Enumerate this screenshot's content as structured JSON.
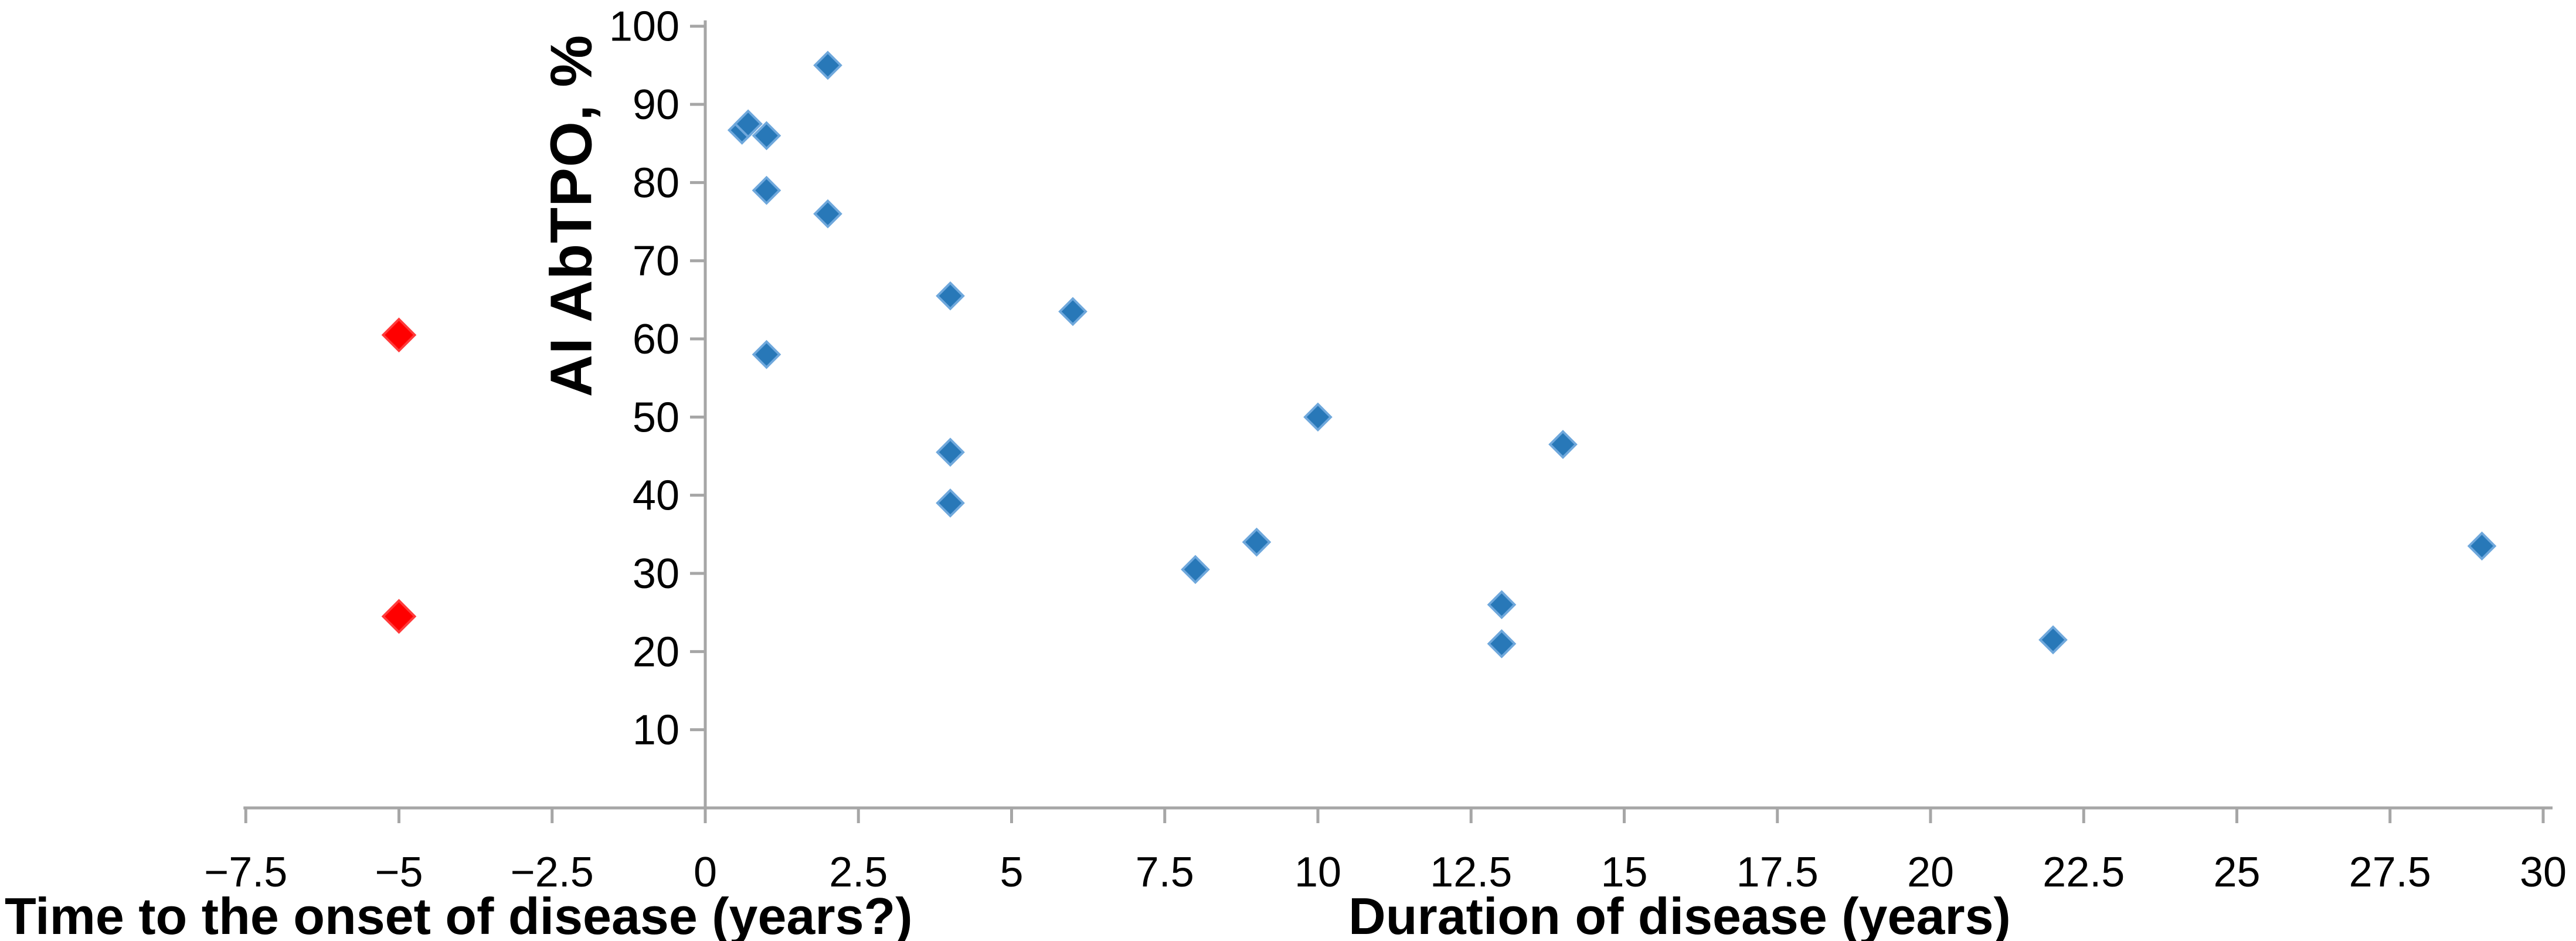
{
  "page": {
    "background": "#FFFFFF"
  },
  "chart_data": {
    "type": "scatter",
    "title": "",
    "ylabel": "AI AbTPO, %",
    "xlabel_left": "Time to the onset of disease (years?)",
    "xlabel_right": "Duration of disease (years)",
    "xlim": [
      -7.5,
      30
    ],
    "ylim": [
      0,
      100
    ],
    "x_ticks": [
      -7.5,
      -5,
      -2.5,
      0,
      2.5,
      5,
      7.5,
      10,
      12.5,
      15,
      17.5,
      20,
      22.5,
      25,
      27.5,
      30
    ],
    "y_ticks": [
      10,
      20,
      30,
      40,
      50,
      60,
      70,
      80,
      90,
      100
    ],
    "grid": false,
    "legend": "none",
    "axis_color": "#A6A6A6",
    "tick_label_color": "#000000",
    "tick_label_size": 72,
    "series": [
      {
        "id": "blue-diamonds",
        "marker": "diamond",
        "color": "#2878B8",
        "edge_color": "#6FA8DC",
        "marker_half_size": 22,
        "points": [
          [
            0.6,
            86.7
          ],
          [
            0.7,
            87.5
          ],
          [
            1,
            86
          ],
          [
            2,
            95
          ],
          [
            1,
            79
          ],
          [
            2,
            76
          ],
          [
            1,
            58
          ],
          [
            4,
            65.5
          ],
          [
            6,
            63.5
          ],
          [
            4,
            45.5
          ],
          [
            4,
            39
          ],
          [
            8,
            30.5
          ],
          [
            9,
            34
          ],
          [
            10,
            50
          ],
          [
            13,
            26
          ],
          [
            13,
            21
          ],
          [
            14,
            46.5
          ],
          [
            22,
            21.5
          ],
          [
            29,
            33.5
          ]
        ]
      },
      {
        "id": "red-diamonds",
        "marker": "diamond",
        "color": "#FF0000",
        "edge_color": "#FF3B3B",
        "marker_half_size": 27,
        "points": [
          [
            -5,
            60.5
          ],
          [
            -5,
            24.5
          ]
        ]
      }
    ]
  }
}
